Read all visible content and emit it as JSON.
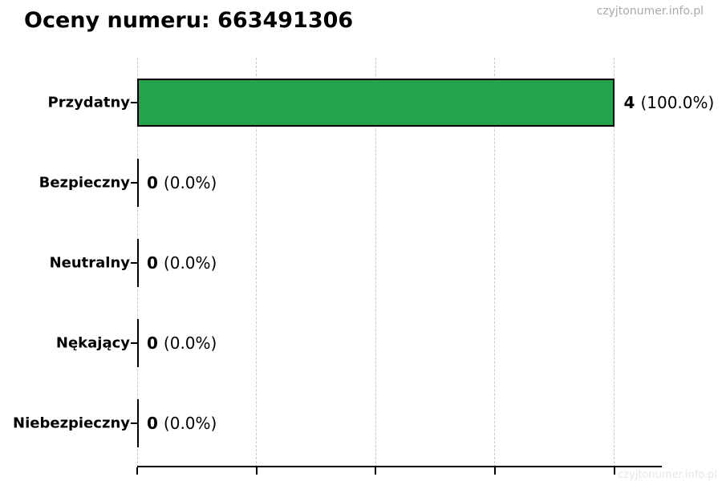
{
  "title": "Oceny numeru: 663491306",
  "watermark": "czyjtonumer.info.pl",
  "colors": {
    "bar_fill": "#22a34c",
    "bar_edge": "#000000",
    "grid": "#c9c9c9",
    "axis": "#000000",
    "title_text": "#000000",
    "watermark_text": "#a9a9a9"
  },
  "chart_data": {
    "type": "bar",
    "orientation": "horizontal",
    "title": "Oceny numeru: 663491306",
    "categories": [
      "Przydatny",
      "Bezpieczny",
      "Neutralny",
      "Nękający",
      "Niebezpieczny"
    ],
    "values": [
      4,
      0,
      0,
      0,
      0
    ],
    "count_labels": [
      "4",
      "0",
      "0",
      "0",
      "0"
    ],
    "percent_labels": [
      "(100.0%)",
      "(0.0%)",
      "(0.0%)",
      "(0.0%)",
      "(0.0%)"
    ],
    "xlabel": "",
    "ylabel": "",
    "xlim": [
      0,
      4.4
    ],
    "xticks": [
      0,
      1,
      2,
      3,
      4
    ],
    "grid": "vertical dashed gridlines",
    "legend": "none"
  }
}
